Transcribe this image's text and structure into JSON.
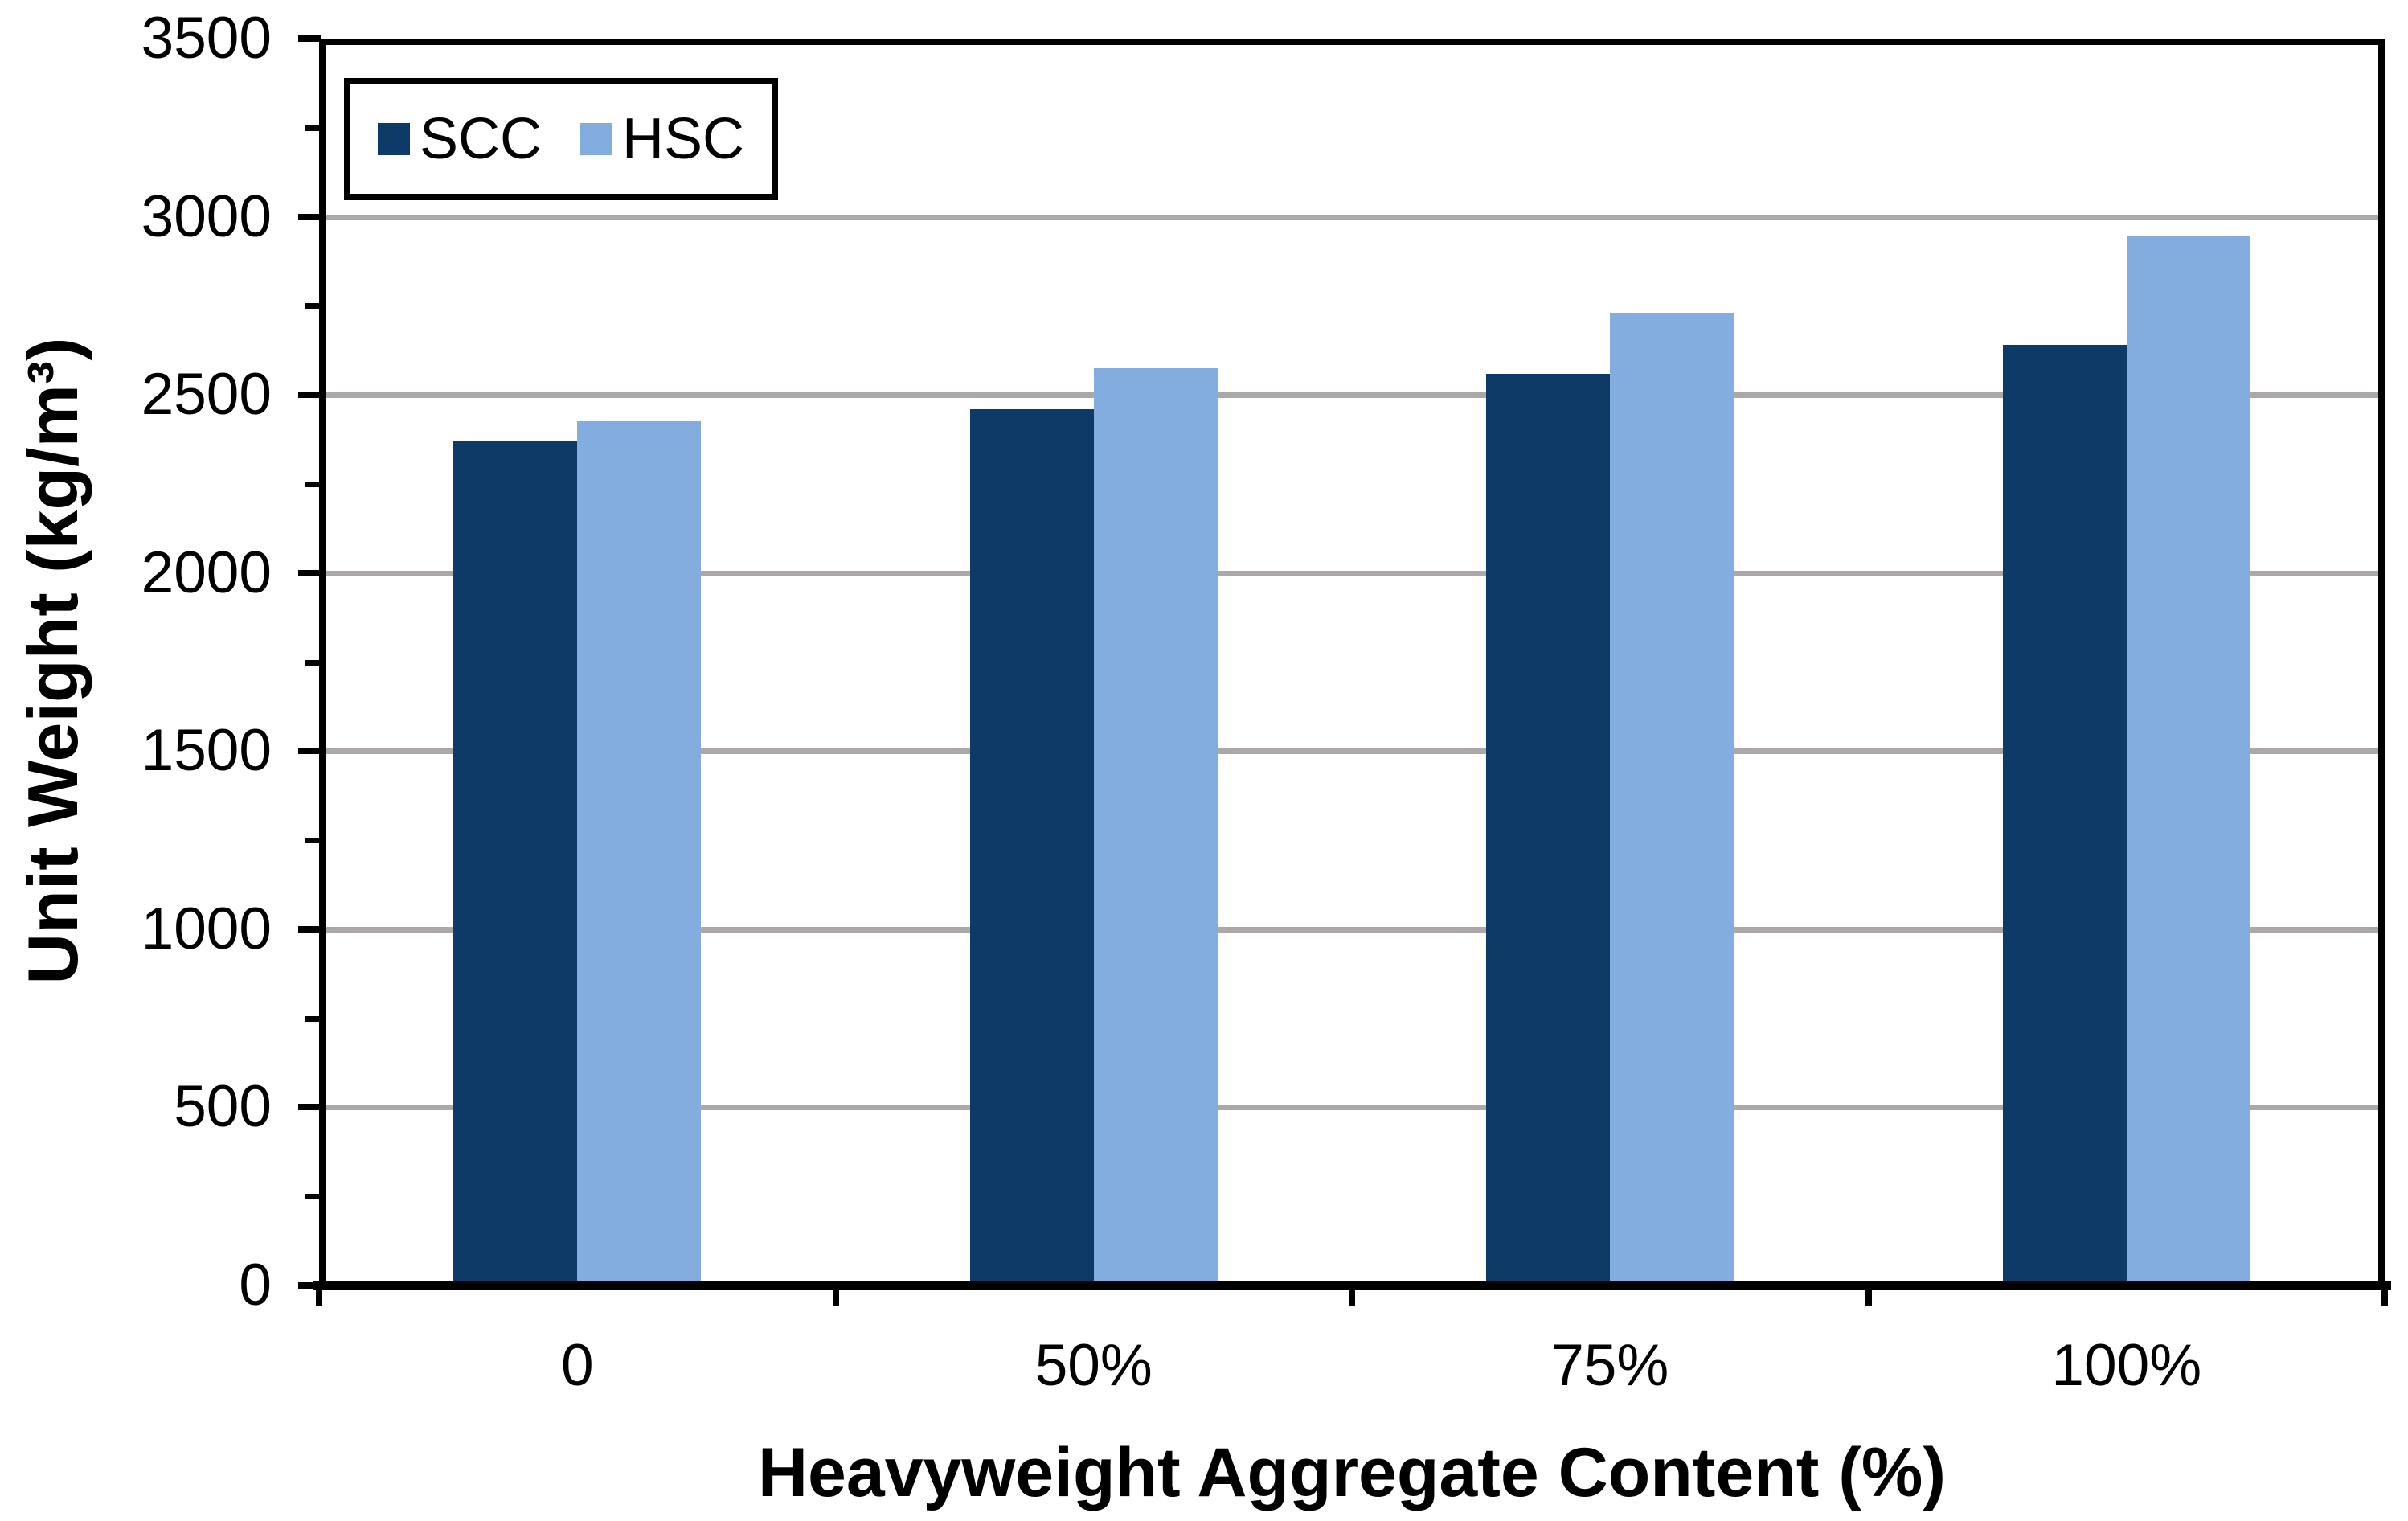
{
  "figure": {
    "background_color": "#FFFFFF",
    "axis_color": "#000000",
    "text_color": "#000000"
  },
  "chart_data": {
    "type": "bar",
    "title": "",
    "categories": [
      "0",
      "50%",
      "75%",
      "100%"
    ],
    "series": [
      {
        "name": "SCC",
        "color": "#0D3A66",
        "values": [
          2370,
          2460,
          2560,
          2640
        ]
      },
      {
        "name": "HSC",
        "color": "#83ADDE",
        "values": [
          2425,
          2575,
          2730,
          2945
        ]
      }
    ],
    "xlabel": "Heavyweight Aggregate Content (%)",
    "ylabel": "Unit Weight (kg/m³)",
    "ylim": [
      0,
      3500
    ],
    "yticks": [
      0,
      500,
      1000,
      1500,
      2000,
      2500,
      3000,
      3500
    ],
    "ytick_step": 500,
    "y_minor_tick_step": 250,
    "grid": "horizontal-major",
    "gridline_color": "#ACA8A8",
    "legend_position": "inside-top-left",
    "legend_labels": [
      "SCC",
      "HSC"
    ]
  }
}
